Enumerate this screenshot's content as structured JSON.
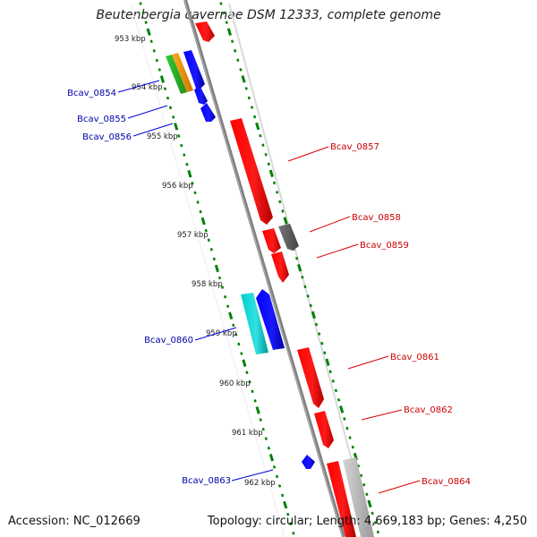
{
  "title": "Beutenbergia cavernae DSM 12333, complete genome",
  "accession_text": "Accession: NC_012669",
  "summary_text": "Topology: circular; Length: 4,669,183 bp; Genes: 4,250",
  "colors": {
    "forward_gene": "#ff0000",
    "reverse_gene": "#0000ff",
    "forward_label": "#cc0000",
    "reverse_label": "#0000aa",
    "backbone": "#808080",
    "tick": "#008000",
    "green_feature": "#33bb33",
    "orange_feature": "#ff9900",
    "cyan_feature": "#00cccc",
    "dark_gray_feature": "#666666",
    "light_gray_feature": "#bbbbbb"
  },
  "scale_labels": [
    "953 kbp",
    "954 kbp",
    "955 kbp",
    "956 kbp",
    "957 kbp",
    "958 kbp",
    "959 kbp",
    "960 kbp",
    "961 kbp",
    "962 kbp"
  ],
  "gene_labels": {
    "Bcav_0854": "Bcav_0854",
    "Bcav_0855": "Bcav_0855",
    "Bcav_0856": "Bcav_0856",
    "Bcav_0860": "Bcav_0860",
    "Bcav_0863": "Bcav_0863",
    "Bcav_0857": "Bcav_0857",
    "Bcav_0858": "Bcav_0858",
    "Bcav_0859": "Bcav_0859",
    "Bcav_0861": "Bcav_0861",
    "Bcav_0862": "Bcav_0862",
    "Bcav_0864": "Bcav_0864"
  }
}
